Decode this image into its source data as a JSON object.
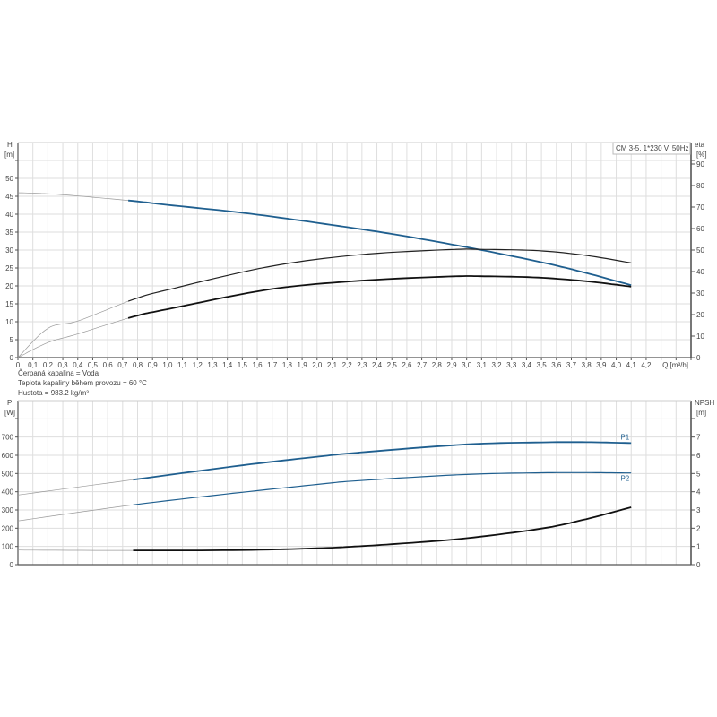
{
  "chart_data": [
    {
      "type": "line",
      "legend_box": "CM 3-5, 1*230 V, 50Hz",
      "xlabel": "Q [m³/h]",
      "ylabel": "H\n[m]",
      "y2label": "eta\n[%]",
      "xlim": [
        0,
        4.5
      ],
      "ylim": [
        0,
        60
      ],
      "y2lim": [
        0,
        100
      ],
      "xticks": [
        "0",
        "0,1",
        "0,2",
        "0,3",
        "0,4",
        "0,5",
        "0,6",
        "0,7",
        "0,8",
        "0,9",
        "1,0",
        "1,1",
        "1,2",
        "1,3",
        "1,4",
        "1,5",
        "1,6",
        "1,7",
        "1,8",
        "1,9",
        "2,0",
        "2,1",
        "2,2",
        "2,3",
        "2,4",
        "2,5",
        "2,6",
        "2,7",
        "2,8",
        "2,9",
        "3,0",
        "3,1",
        "3,2",
        "3,3",
        "3,4",
        "3,5",
        "3,6",
        "3,7",
        "3,8",
        "3,9",
        "4,0",
        "4,1",
        "4,2"
      ],
      "yticks": [
        0,
        5,
        10,
        15,
        20,
        25,
        30,
        35,
        40,
        45,
        50
      ],
      "y2ticks": [
        0,
        10,
        20,
        30,
        40,
        50,
        60,
        70,
        80,
        90
      ],
      "grid": true,
      "duty_range_start": 0.77,
      "series": [
        {
          "axis": "left",
          "color": "#1f5f8f",
          "x": [
            0,
            0.2,
            0.4,
            0.77,
            1.0,
            1.5,
            2.0,
            2.5,
            3.0,
            3.5,
            3.8,
            4.1
          ],
          "y": [
            46,
            45.7,
            45.1,
            43.7,
            42.6,
            40.4,
            37.6,
            34.5,
            30.8,
            26.6,
            23.6,
            20.2
          ]
        },
        {
          "axis": "right",
          "color": "#222222",
          "x": [
            0,
            0.2,
            0.4,
            0.77,
            1.0,
            1.68,
            2.28,
            2.88,
            3.12,
            3.48,
            3.8,
            4.1
          ],
          "y": [
            0,
            13.6,
            17,
            27,
            31.5,
            42.3,
            47.8,
            50.2,
            50.3,
            49.7,
            47.5,
            44
          ]
        },
        {
          "axis": "right",
          "color": "#111111",
          "x": [
            0,
            0.2,
            0.4,
            0.77,
            1.0,
            1.68,
            2.28,
            2.88,
            3.12,
            3.48,
            3.8,
            4.1
          ],
          "y": [
            0,
            7,
            11,
            19,
            22.5,
            31.7,
            35.7,
            37.7,
            37.8,
            37.2,
            35.5,
            33
          ]
        }
      ]
    },
    {
      "type": "line",
      "ylabel": "P\n[W]",
      "y2label": "NPSH\n[m]",
      "xlim": [
        0,
        4.5
      ],
      "ylim": [
        0,
        900
      ],
      "y2lim": [
        0,
        9
      ],
      "yticks": [
        0,
        100,
        200,
        300,
        400,
        500,
        600,
        700
      ],
      "y2ticks": [
        0,
        1,
        2,
        3,
        4,
        5,
        6,
        7
      ],
      "grid": true,
      "duty_range_start": 0.77,
      "series": [
        {
          "name": "P1",
          "axis": "left",
          "color": "#1f5f8f",
          "x": [
            0,
            0.77,
            1.5,
            2.0,
            2.28,
            3.0,
            3.5,
            3.8,
            4.1
          ],
          "y": [
            382,
            466,
            545,
            592,
            615,
            660,
            671,
            672,
            667
          ]
        },
        {
          "name": "P2",
          "axis": "left",
          "color": "#1f5f8f",
          "x": [
            0,
            0.77,
            1.5,
            2.0,
            2.28,
            3.0,
            3.5,
            3.8,
            4.1
          ],
          "y": [
            240,
            328,
            397,
            440,
            461,
            495,
            504,
            505,
            503
          ]
        },
        {
          "axis": "right",
          "color": "#111111",
          "x": [
            0,
            0.77,
            1.5,
            2.0,
            2.28,
            2.6,
            3.0,
            3.5,
            3.8,
            4.1
          ],
          "y": [
            0.8,
            0.78,
            0.8,
            0.9,
            1.01,
            1.18,
            1.45,
            1.98,
            2.5,
            3.15
          ]
        }
      ]
    }
  ],
  "info": {
    "line1": "Čerpaná kapalina = Voda",
    "line2": "Teplota kapaliny během provozu = 60 °C",
    "line3": "Hustota = 983.2 kg/m³"
  }
}
